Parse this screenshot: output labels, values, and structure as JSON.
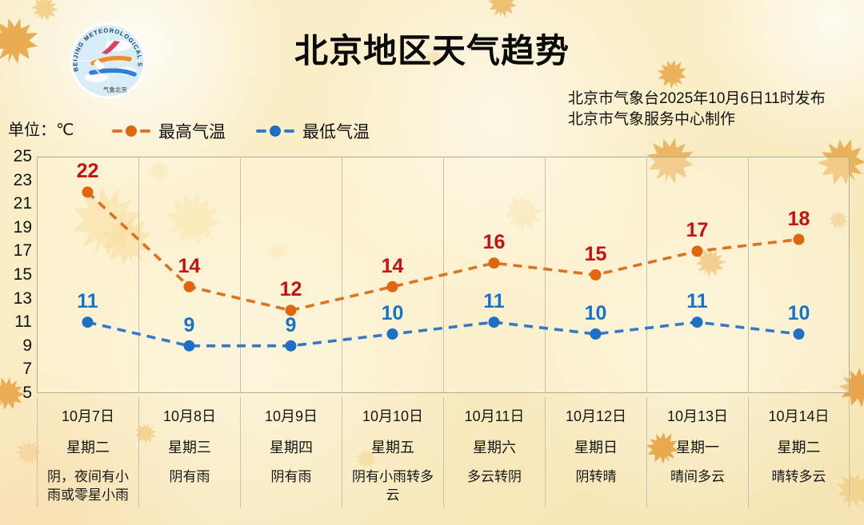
{
  "header": {
    "title": "北京地区天气趋势",
    "issue_line1": "北京市气象台2025年10月6日11时发布",
    "issue_line2": "北京市气象服务中心制作",
    "logo": {
      "ring_text": "BEIJING METEOROLOGICAL SERVICE",
      "bottom_text": "气象北京"
    }
  },
  "chart_data": {
    "type": "line",
    "title": "北京地区天气趋势",
    "unit_label": "单位：℃",
    "categories": [
      "10月7日",
      "10月8日",
      "10月9日",
      "10月10日",
      "10月11日",
      "10月12日",
      "10月13日",
      "10月14日"
    ],
    "weekdays": [
      "星期二",
      "星期三",
      "星期四",
      "星期五",
      "星期六",
      "星期日",
      "星期一",
      "星期二"
    ],
    "weather": [
      "阴，夜间有小雨或零星小雨",
      "阴有雨",
      "阴有雨",
      "阴有小雨转多云",
      "多云转阴",
      "阴转晴",
      "晴间多云",
      "晴转多云"
    ],
    "series": [
      {
        "name": "最高气温",
        "values": [
          22,
          14,
          12,
          14,
          16,
          15,
          17,
          18
        ],
        "line_color": "#e0711f",
        "marker_color": "#df660e",
        "label_color": "#c90f0f"
      },
      {
        "name": "最低气温",
        "values": [
          11,
          9,
          9,
          10,
          11,
          10,
          11,
          10
        ],
        "line_color": "#3578c8",
        "marker_color": "#1d70c4",
        "label_color": "#1574c8"
      }
    ],
    "yticks": [
      25,
      23,
      21,
      19,
      17,
      15,
      13,
      11,
      9,
      7,
      5
    ],
    "ylim": [
      5,
      25
    ],
    "grid": "vertical-only",
    "legend_position": "top-left above plot"
  }
}
